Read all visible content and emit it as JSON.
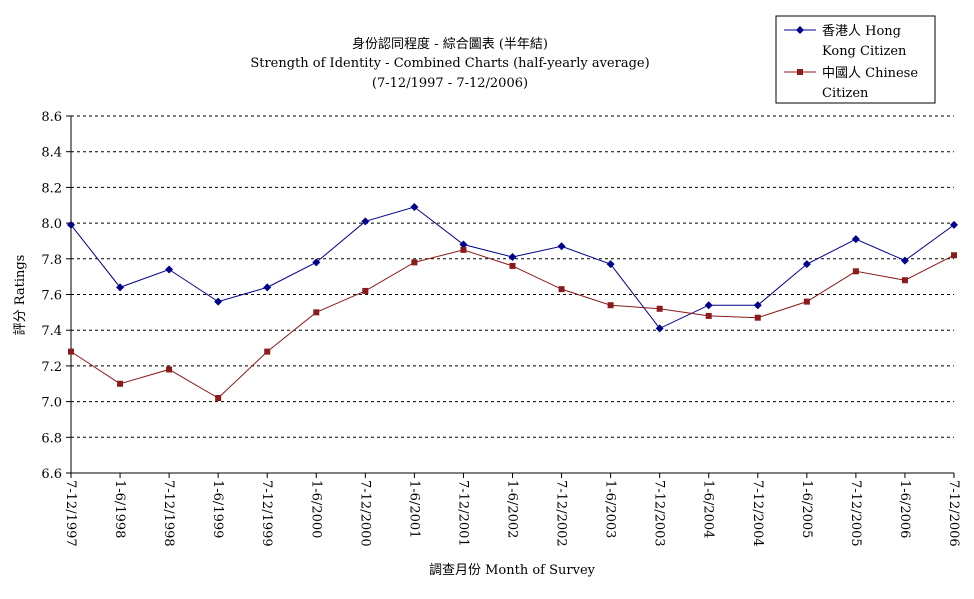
{
  "chart_data": {
    "type": "line",
    "title": "身份認同程度 - 綜合圖表 (半年結)",
    "subtitle": "Strength of Identity - Combined Charts (half-yearly average)",
    "subtitle2": "(7-12/1997 - 7-12/2006)",
    "xlabel": "調查月份 Month of Survey",
    "ylabel": "評分 Ratings",
    "ylim": [
      6.6,
      8.6
    ],
    "ytick_step": 0.2,
    "yticks": [
      "6.6",
      "6.8",
      "7.0",
      "7.2",
      "7.4",
      "7.6",
      "7.8",
      "8.0",
      "8.2",
      "8.4",
      "8.6"
    ],
    "grid": "horizontal dashed",
    "legend_position": "top-right",
    "categories": [
      "7-12/1997",
      "1-6/1998",
      "7-12/1998",
      "1-6/1999",
      "7-12/1999",
      "1-6/2000",
      "7-12/2000",
      "1-6/2001",
      "7-12/2001",
      "1-6/2002",
      "7-12/2002",
      "1-6/2003",
      "7-12/2003",
      "1-6/2004",
      "7-12/2004",
      "1-6/2005",
      "7-12/2005",
      "1-6/2006",
      "7-12/2006"
    ],
    "series": [
      {
        "name": "香港人 Hong Kong Citizen",
        "legend_line1": "香港人 Hong",
        "legend_line2": "Kong Citizen",
        "color": "#00008b",
        "marker": "diamond",
        "values": [
          7.99,
          7.64,
          7.74,
          7.56,
          7.64,
          7.78,
          8.01,
          8.09,
          7.88,
          7.81,
          7.87,
          7.77,
          7.41,
          7.54,
          7.54,
          7.77,
          7.91,
          7.79,
          7.99
        ]
      },
      {
        "name": "中國人 Chinese Citizen",
        "legend_line1": "中國人 Chinese",
        "legend_line2": "Citizen",
        "color": "#8b1a1a",
        "marker": "square",
        "values": [
          7.28,
          7.1,
          7.18,
          7.02,
          7.28,
          7.5,
          7.62,
          7.78,
          7.85,
          7.76,
          7.63,
          7.54,
          7.52,
          7.48,
          7.47,
          7.56,
          7.73,
          7.68,
          7.82
        ]
      }
    ]
  }
}
